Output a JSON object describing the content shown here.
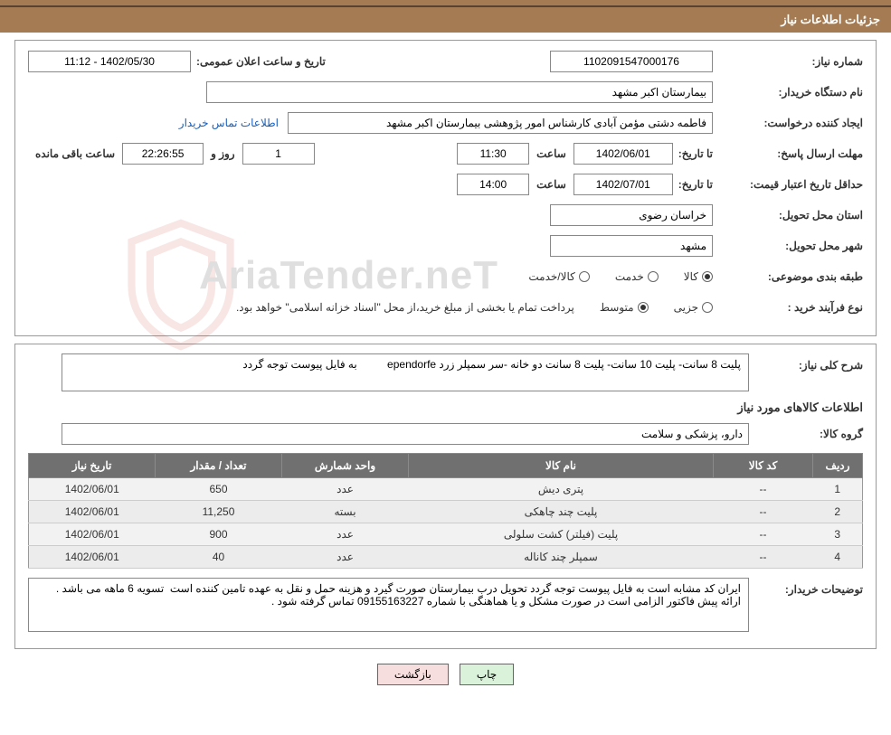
{
  "header": {
    "title": "جزئیات اطلاعات نیاز"
  },
  "fields": {
    "need_number_label": "شماره نیاز:",
    "need_number": "1102091547000176",
    "announce_label": "تاریخ و ساعت اعلان عمومی:",
    "announce_value": "1402/05/30 - 11:12",
    "buyer_org_label": "نام دستگاه خریدار:",
    "buyer_org": "بیمارستان اکبر مشهد",
    "requester_label": "ایجاد کننده درخواست:",
    "requester": "فاطمه دشتی مؤمن آبادی کارشناس امور پژوهشی بیمارستان اکبر مشهد",
    "contact_link": "اطلاعات تماس خریدار",
    "deadline_reply_label": "مهلت ارسال پاسخ:",
    "until_label": "تا تاریخ:",
    "reply_until_date": "1402/06/01",
    "hour_label": "ساعت",
    "reply_until_time": "11:30",
    "days_label": "روز و",
    "days_remaining": "1",
    "time_remaining": "22:26:55",
    "remaining_label": "ساعت باقی مانده",
    "min_validity_label": "حداقل تاریخ اعتبار قیمت:",
    "validity_until_date": "1402/07/01",
    "validity_until_time": "14:00",
    "province_label": "استان محل تحویل:",
    "province": "خراسان رضوی",
    "city_label": "شهر محل تحویل:",
    "city": "مشهد",
    "category_label": "طبقه بندی موضوعی:",
    "opt_kala": "کالا",
    "opt_khedmat": "خدمت",
    "opt_kalakhedmat": "کالا/خدمت",
    "purchase_type_label": "نوع فرآیند خرید :",
    "opt_partial": "جزیی",
    "opt_medium": "متوسط",
    "purchase_type_note": "پرداخت تمام یا بخشی از مبلغ خرید،از محل \"اسناد خزانه اسلامی\" خواهد بود.",
    "need_desc_label": "شرح کلی نیاز:",
    "need_desc": "پلیت 8 سانت- پلیت 10 سانت- پلیت 8 سانت دو خانه -سر سمپلر زرد ependorfe          به فایل پیوست توجه گردد",
    "items_header": "اطلاعات کالاهای مورد نیاز",
    "goods_group_label": "گروه کالا:",
    "goods_group": "دارو، پزشکی و سلامت",
    "buyer_notes_label": "توضیحات خریدار:",
    "buyer_notes": "ایران کد مشابه است به فایل پیوست توجه گردد تحویل درب بیمارستان صورت گیرد و هزینه حمل و نقل به عهده تامین کننده است  تسویه 6 ماهه می باشد . ارائه پیش فاکتور الزامی است در صورت مشکل و یا هماهنگی با شماره 09155163227 تماس گرفته شود ."
  },
  "table": {
    "columns": {
      "row": "ردیف",
      "code": "کد کالا",
      "name": "نام کالا",
      "unit": "واحد شمارش",
      "qty": "تعداد / مقدار",
      "date": "تاریخ نیاز"
    },
    "rows": [
      {
        "n": "1",
        "code": "--",
        "name": "پتری دیش",
        "unit": "عدد",
        "qty": "650",
        "date": "1402/06/01"
      },
      {
        "n": "2",
        "code": "--",
        "name": "پلیت چند چاهکی",
        "unit": "بسته",
        "qty": "11,250",
        "date": "1402/06/01"
      },
      {
        "n": "3",
        "code": "--",
        "name": "پلیت (فیلتر) کشت سلولی",
        "unit": "عدد",
        "qty": "900",
        "date": "1402/06/01"
      },
      {
        "n": "4",
        "code": "--",
        "name": "سمپلر چند کاناله",
        "unit": "عدد",
        "qty": "40",
        "date": "1402/06/01"
      }
    ]
  },
  "buttons": {
    "print": "چاپ",
    "back": "بازگشت"
  },
  "watermark": {
    "text": "AriaTender.neT"
  },
  "colors": {
    "header_bg": "#a47b52",
    "header_text": "#ffffff",
    "border": "#9a9a9a",
    "th_bg": "#707070",
    "td_bg": "#f2f2f2",
    "link": "#1a5fba",
    "btn_print_bg": "#d9f2d9",
    "btn_back_bg": "#f7dede"
  }
}
